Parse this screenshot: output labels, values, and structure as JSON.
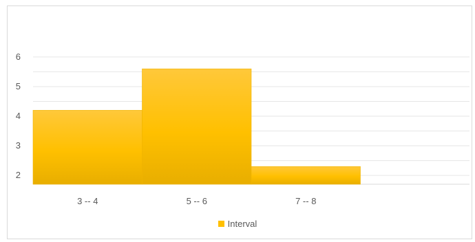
{
  "chart_data": {
    "type": "bar",
    "categories": [
      "3 -- 4",
      "5 -- 6",
      "7 -- 8"
    ],
    "series": [
      {
        "name": "Interval",
        "values": [
          4.2,
          5.6,
          2.3
        ]
      }
    ],
    "yticks": [
      2,
      3,
      4,
      5,
      6
    ],
    "ylim": [
      1.7,
      6.3
    ],
    "grid": true,
    "legend": "bottom",
    "colors": {
      "bar_top": "#ffc83a",
      "bar_mid": "#ffc000",
      "bar_bottom": "#e8ae00",
      "grid": "#e6e6e6"
    }
  }
}
